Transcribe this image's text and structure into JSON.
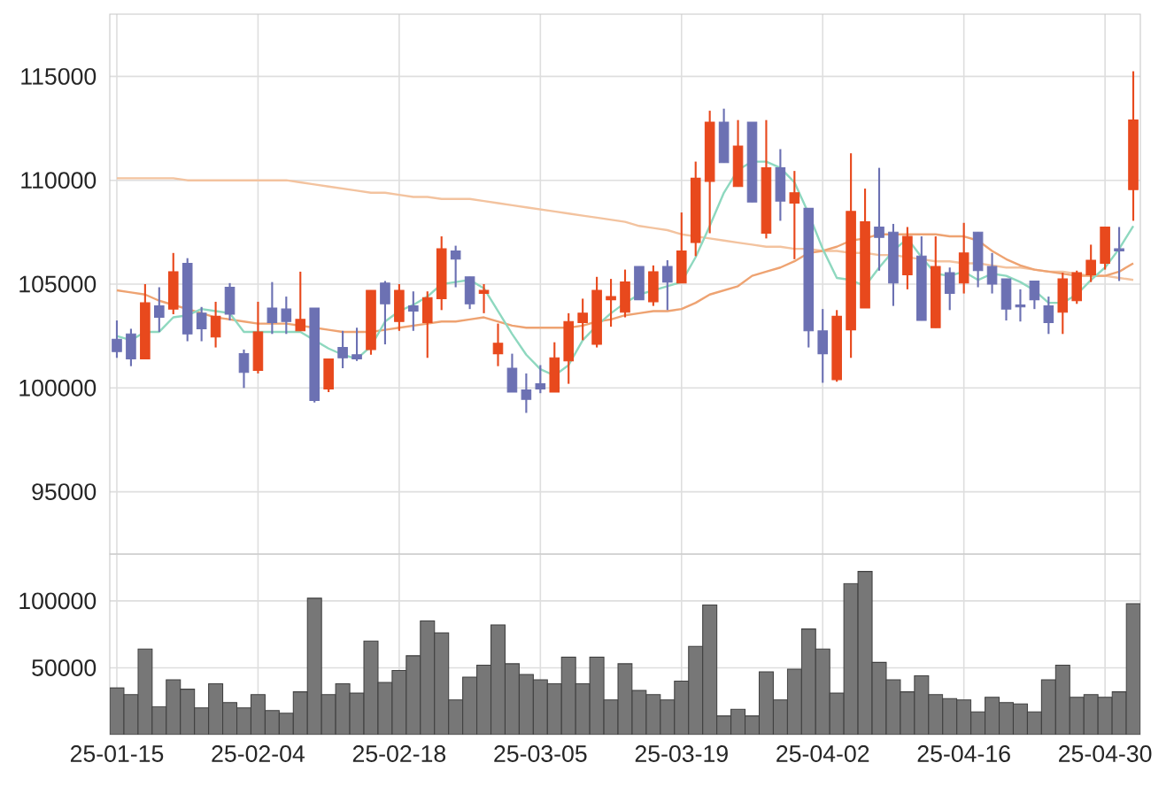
{
  "chart_data": [
    {
      "type": "candlestick",
      "categories": [
        null,
        null,
        null,
        null,
        null,
        null,
        null,
        null,
        null,
        null,
        null,
        null,
        null,
        null,
        null,
        null,
        null,
        null,
        null,
        null,
        null,
        null,
        null,
        null,
        null,
        null,
        null,
        null,
        null,
        null,
        null,
        null,
        null,
        null,
        null,
        null,
        null,
        null,
        null,
        null,
        null,
        null,
        null,
        null,
        null,
        null,
        null,
        null,
        null,
        null,
        null,
        null,
        null,
        null,
        null,
        null,
        null,
        null,
        null,
        null,
        null,
        null,
        null,
        null,
        null,
        null,
        null,
        null,
        null,
        null,
        null,
        null,
        null
      ],
      "ohlc": [
        [
          102350,
          103250,
          101450,
          101750
        ],
        [
          102600,
          102850,
          101050,
          101400
        ],
        [
          101400,
          105000,
          101400,
          104100
        ],
        [
          103950,
          104850,
          102700,
          103400
        ],
        [
          103800,
          106500,
          103550,
          105600
        ],
        [
          106000,
          106250,
          102250,
          102600
        ],
        [
          103600,
          103900,
          102250,
          102850
        ],
        [
          102450,
          104150,
          101950,
          103450
        ],
        [
          104850,
          105050,
          103250,
          103550
        ],
        [
          101650,
          101850,
          100000,
          100750
        ],
        [
          100850,
          104150,
          100700,
          102700
        ],
        [
          103850,
          105100,
          102600,
          103150
        ],
        [
          103800,
          104400,
          102600,
          103200
        ],
        [
          102750,
          105600,
          102750,
          103300
        ],
        [
          103850,
          103850,
          99300,
          99400
        ],
        [
          99950,
          101400,
          99800,
          101400
        ],
        [
          101950,
          102750,
          100950,
          101450
        ],
        [
          101600,
          102900,
          101300,
          101400
        ],
        [
          101850,
          104700,
          101600,
          104700
        ],
        [
          105050,
          105150,
          102100,
          104050
        ],
        [
          103200,
          105000,
          102750,
          104700
        ],
        [
          103950,
          104650,
          102750,
          103700
        ],
        [
          103150,
          104650,
          101450,
          104350
        ],
        [
          104300,
          107300,
          103750,
          106700
        ],
        [
          106600,
          106850,
          104850,
          106200
        ],
        [
          105350,
          105350,
          103800,
          104050
        ],
        [
          104550,
          105000,
          103600,
          104700
        ],
        [
          101650,
          103100,
          101050,
          102150
        ],
        [
          100950,
          101650,
          99800,
          99800
        ],
        [
          99900,
          100700,
          98800,
          99450
        ],
        [
          100200,
          101100,
          99750,
          99950
        ],
        [
          99800,
          102200,
          99800,
          101450
        ],
        [
          101300,
          103600,
          100200,
          103200
        ],
        [
          103150,
          104300,
          102300,
          103600
        ],
        [
          102100,
          105350,
          101950,
          104700
        ],
        [
          104250,
          105250,
          102950,
          104400
        ],
        [
          103650,
          105700,
          103400,
          105100
        ],
        [
          105850,
          105850,
          104250,
          104250
        ],
        [
          104150,
          105900,
          103950,
          105600
        ],
        [
          105850,
          106150,
          103750,
          105100
        ],
        [
          105050,
          108450,
          105050,
          106600
        ],
        [
          107000,
          110900,
          106350,
          110100
        ],
        [
          109950,
          113350,
          107450,
          112800
        ],
        [
          112800,
          113450,
          110850,
          110850
        ],
        [
          109700,
          112900,
          109700,
          111650
        ],
        [
          112800,
          112800,
          108950,
          108950
        ],
        [
          107450,
          112900,
          107200,
          110600
        ],
        [
          110600,
          111500,
          108050,
          109000
        ],
        [
          108900,
          110450,
          106200,
          109400
        ],
        [
          108650,
          108650,
          101950,
          102750
        ],
        [
          102750,
          103800,
          100250,
          101650
        ],
        [
          100400,
          103750,
          100300,
          103450
        ],
        [
          102800,
          111300,
          101450,
          108500
        ],
        [
          103850,
          109600,
          103850,
          108000
        ],
        [
          107750,
          110600,
          105650,
          107250
        ],
        [
          107500,
          107900,
          103950,
          105050
        ],
        [
          105450,
          107750,
          104750,
          107300
        ],
        [
          106350,
          107300,
          103250,
          103250
        ],
        [
          102900,
          107300,
          102900,
          105850
        ],
        [
          105550,
          105800,
          103750,
          104550
        ],
        [
          105050,
          107950,
          104550,
          106500
        ],
        [
          107500,
          107500,
          104850,
          105650
        ],
        [
          105850,
          106500,
          104550,
          105000
        ],
        [
          105250,
          105250,
          103250,
          103800
        ],
        [
          104000,
          104750,
          103200,
          103900
        ],
        [
          105150,
          105150,
          103800,
          104250
        ],
        [
          103950,
          104400,
          102600,
          103150
        ],
        [
          103650,
          105550,
          102600,
          105250
        ],
        [
          104200,
          105650,
          104050,
          105550
        ],
        [
          105450,
          106900,
          105100,
          106150
        ],
        [
          106000,
          107750,
          105700,
          107750
        ],
        [
          106700,
          107750,
          105150,
          106600
        ],
        [
          109550,
          115250,
          108050,
          112900
        ]
      ],
      "colors": [
        "#6c71b3",
        "#6c71b3",
        "#e8491d",
        "#6c71b3",
        "#e8491d",
        "#6c71b3",
        "#6c71b3",
        "#e8491d",
        "#6c71b3",
        "#6c71b3",
        "#e8491d",
        "#6c71b3",
        "#6c71b3",
        "#e8491d",
        "#6c71b3",
        "#e8491d",
        "#6c71b3",
        "#6c71b3",
        "#e8491d",
        "#6c71b3",
        "#e8491d",
        "#6c71b3",
        "#e8491d",
        "#e8491d",
        "#6c71b3",
        "#6c71b3",
        "#e8491d",
        "#e8491d",
        "#6c71b3",
        "#6c71b3",
        "#6c71b3",
        "#e8491d",
        "#e8491d",
        "#e8491d",
        "#e8491d",
        "#e8491d",
        "#e8491d",
        "#6c71b3",
        "#e8491d",
        "#6c71b3",
        "#e8491d",
        "#e8491d",
        "#e8491d",
        "#6c71b3",
        "#e8491d",
        "#6c71b3",
        "#e8491d",
        "#6c71b3",
        "#e8491d",
        "#6c71b3",
        "#6c71b3",
        "#e8491d",
        "#e8491d",
        "#e8491d",
        "#6c71b3",
        "#6c71b3",
        "#e8491d",
        "#6c71b3",
        "#e8491d",
        "#6c71b3",
        "#e8491d",
        "#6c71b3",
        "#6c71b3",
        "#6c71b3",
        "#6c71b3",
        "#6c71b3",
        "#6c71b3",
        "#e8491d",
        "#e8491d",
        "#e8491d",
        "#e8491d",
        "#6c71b3",
        "#e8491d"
      ],
      "series": [
        {
          "type": "line",
          "color": "#f3c39f",
          "values": [
            110100,
            110100,
            110100,
            110100,
            110100,
            110000,
            110000,
            110000,
            110000,
            110000,
            110000,
            110000,
            110000,
            109900,
            109800,
            109700,
            109600,
            109500,
            109400,
            109400,
            109300,
            109200,
            109200,
            109100,
            109100,
            109100,
            109000,
            108900,
            108800,
            108700,
            108600,
            108500,
            108400,
            108300,
            108200,
            108100,
            108000,
            107800,
            107700,
            107600,
            107400,
            107300,
            107200,
            107100,
            107000,
            106900,
            106800,
            106800,
            106700,
            106700,
            106600,
            106600,
            106500,
            106500,
            106400,
            106400,
            106300,
            106200,
            106100,
            106100,
            106000,
            106000,
            105900,
            105800,
            105800,
            105700,
            105600,
            105600,
            105500,
            105400,
            105400,
            105300,
            105200
          ]
        },
        {
          "type": "line",
          "color": "#eea372",
          "values": [
            104700,
            104600,
            104500,
            104200,
            104000,
            103800,
            103600,
            103400,
            103300,
            103200,
            103100,
            103100,
            103100,
            103000,
            102900,
            102800,
            102700,
            102700,
            102700,
            102800,
            102900,
            103000,
            103100,
            103200,
            103200,
            103300,
            103400,
            103200,
            103000,
            102900,
            102900,
            102900,
            102900,
            103000,
            103200,
            103300,
            103500,
            103600,
            103700,
            103700,
            103800,
            104100,
            104500,
            104700,
            104900,
            105400,
            105600,
            105800,
            106100,
            106500,
            106600,
            106800,
            107100,
            107200,
            107400,
            107400,
            107400,
            107400,
            107400,
            107300,
            107300,
            107100,
            106600,
            106200,
            105900,
            105700,
            105600,
            105500,
            105400,
            105400,
            105400,
            105600,
            106000
          ]
        },
        {
          "type": "line",
          "color": "#8ed8bf",
          "values": [
            102500,
            102300,
            102700,
            102700,
            103400,
            103500,
            103800,
            103700,
            103600,
            102700,
            102700,
            102700,
            102700,
            102700,
            102300,
            101900,
            101600,
            101400,
            102000,
            103200,
            103700,
            104000,
            104400,
            105000,
            105100,
            105200,
            104800,
            103700,
            102600,
            101600,
            100900,
            100600,
            101100,
            102300,
            103000,
            103600,
            104100,
            104500,
            104700,
            104900,
            105100,
            106300,
            107800,
            109400,
            110500,
            110900,
            110900,
            110600,
            109900,
            108400,
            106700,
            105300,
            105200,
            104900,
            105800,
            106600,
            107200,
            106300,
            105500,
            105400,
            105600,
            105200,
            105500,
            105400,
            105100,
            104700,
            104100,
            104100,
            104500,
            105200,
            105800,
            106700,
            107800
          ]
        }
      ],
      "ylim": [
        92000,
        118000
      ],
      "yticks": [
        95000,
        100000,
        105000,
        110000,
        115000
      ],
      "grid": true,
      "tick_labels": "y"
    },
    {
      "type": "bar",
      "categories": [
        "25-01-15",
        null,
        null,
        null,
        null,
        null,
        null,
        null,
        null,
        null,
        "25-02-04",
        null,
        null,
        null,
        null,
        null,
        null,
        null,
        null,
        null,
        "25-02-18",
        null,
        null,
        null,
        null,
        null,
        null,
        null,
        null,
        null,
        "25-03-05",
        null,
        null,
        null,
        null,
        null,
        null,
        null,
        null,
        null,
        "25-03-19",
        null,
        null,
        null,
        null,
        null,
        null,
        null,
        null,
        null,
        "25-04-02",
        null,
        null,
        null,
        null,
        null,
        null,
        null,
        null,
        null,
        "25-04-16",
        null,
        null,
        null,
        null,
        null,
        null,
        null,
        null,
        null,
        "25-04-30",
        null,
        null
      ],
      "values": [
        35000,
        30000,
        64000,
        21000,
        41000,
        34000,
        20000,
        38000,
        24000,
        20000,
        30000,
        18000,
        16000,
        32000,
        102000,
        30000,
        38000,
        31000,
        70000,
        39000,
        48000,
        59000,
        85000,
        76000,
        26000,
        43000,
        52000,
        82000,
        53000,
        45000,
        41000,
        38000,
        58000,
        38000,
        58000,
        26000,
        53000,
        33000,
        30000,
        26000,
        40000,
        66000,
        97000,
        14000,
        19000,
        14000,
        47000,
        26000,
        49000,
        79000,
        64000,
        31000,
        113000,
        122000,
        54000,
        41000,
        32000,
        44000,
        30000,
        27000,
        26000,
        17000,
        28000,
        24000,
        23000,
        17000,
        41000,
        52000,
        28000,
        30000,
        28000,
        32000,
        98000
      ],
      "color": "#777777",
      "ylim": [
        0,
        135000
      ],
      "yticks": [
        50000,
        100000
      ],
      "grid": true
    }
  ]
}
